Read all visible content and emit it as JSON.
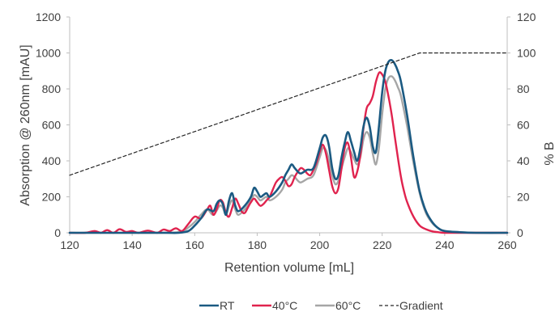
{
  "chart_data": {
    "type": "line",
    "xlabel": "Retention volume [mL]",
    "ylabel": "Absorption @ 260nm  [mAU]",
    "y2label": "% B",
    "xlim": [
      120,
      260
    ],
    "ylim": [
      0,
      1200
    ],
    "y2lim": [
      0,
      120
    ],
    "x_ticks": [
      "120",
      "140",
      "160",
      "180",
      "200",
      "220",
      "240",
      "260"
    ],
    "y_ticks": [
      "0",
      "200",
      "400",
      "600",
      "800",
      "1000",
      "1200"
    ],
    "y2_ticks": [
      "0",
      "20",
      "40",
      "60",
      "80",
      "100",
      "120"
    ],
    "grid": false,
    "legend_position": "bottom",
    "colors": {
      "RT": "#1b5a82",
      "40°C": "#e0234e",
      "60°C": "#a6a6a6",
      "Gradient": "#262626",
      "axis": "#bfbfbf",
      "text": "#404040"
    },
    "series": [
      {
        "name": "RT",
        "axis": "left",
        "x": [
          120,
          140,
          150,
          155,
          158,
          160,
          162,
          164,
          166,
          167,
          168,
          169,
          170,
          171,
          172,
          173,
          174,
          176,
          178,
          179,
          180,
          181,
          182,
          183,
          184,
          186,
          188,
          189,
          190,
          191,
          192,
          193,
          194,
          196,
          198,
          200,
          201,
          202,
          203,
          204,
          205,
          206,
          207,
          208,
          209,
          210,
          211,
          212,
          213,
          214,
          215,
          216,
          217,
          218,
          219,
          220,
          221,
          222,
          223,
          224,
          225,
          226,
          228,
          230,
          232,
          234,
          236,
          238,
          240,
          245,
          250,
          260
        ],
        "values": [
          0,
          0,
          0,
          0,
          10,
          40,
          80,
          130,
          120,
          160,
          180,
          160,
          100,
          180,
          220,
          150,
          120,
          150,
          200,
          250,
          230,
          200,
          210,
          220,
          200,
          230,
          280,
          320,
          350,
          380,
          360,
          340,
          330,
          350,
          360,
          470,
          530,
          540,
          480,
          360,
          300,
          320,
          420,
          500,
          560,
          510,
          450,
          400,
          470,
          590,
          640,
          590,
          480,
          450,
          600,
          780,
          900,
          950,
          960,
          940,
          900,
          840,
          650,
          420,
          230,
          120,
          60,
          25,
          10,
          3,
          0,
          0
        ]
      },
      {
        "name": "40°C",
        "axis": "left",
        "x": [
          120,
          125,
          128,
          130,
          132,
          134,
          136,
          138,
          140,
          142,
          145,
          148,
          150,
          152,
          154,
          156,
          158,
          160,
          162,
          164,
          165,
          166,
          167,
          168,
          169,
          170,
          171,
          172,
          173,
          174,
          175,
          176,
          177,
          178,
          179,
          180,
          181,
          182,
          183,
          184,
          185,
          186,
          187,
          188,
          189,
          190,
          191,
          192,
          193,
          194,
          195,
          196,
          197,
          198,
          199,
          200,
          201,
          202,
          203,
          204,
          205,
          206,
          207,
          208,
          209,
          210,
          211,
          212,
          213,
          214,
          215,
          216,
          217,
          218,
          219,
          220,
          221,
          222,
          223,
          224,
          225,
          226,
          227,
          228,
          230,
          232,
          234,
          236,
          238,
          240,
          245,
          260
        ],
        "values": [
          0,
          0,
          10,
          0,
          15,
          0,
          20,
          5,
          10,
          0,
          12,
          0,
          18,
          10,
          25,
          10,
          50,
          90,
          80,
          130,
          150,
          100,
          130,
          180,
          170,
          110,
          90,
          140,
          190,
          160,
          120,
          110,
          140,
          170,
          190,
          170,
          150,
          160,
          180,
          200,
          240,
          280,
          300,
          310,
          290,
          260,
          270,
          310,
          340,
          360,
          350,
          330,
          320,
          350,
          390,
          450,
          490,
          440,
          350,
          260,
          220,
          250,
          360,
          470,
          500,
          420,
          310,
          340,
          430,
          580,
          690,
          720,
          760,
          840,
          890,
          880,
          840,
          760,
          660,
          540,
          420,
          310,
          230,
          170,
          90,
          40,
          20,
          8,
          3,
          0,
          0,
          0
        ]
      },
      {
        "name": "60°C",
        "axis": "left",
        "x": [
          120,
          150,
          156,
          158,
          160,
          162,
          164,
          166,
          168,
          169,
          170,
          171,
          172,
          173,
          174,
          176,
          178,
          179,
          180,
          181,
          182,
          183,
          184,
          186,
          188,
          189,
          190,
          191,
          192,
          193,
          194,
          196,
          198,
          200,
          201,
          202,
          203,
          204,
          205,
          206,
          207,
          208,
          209,
          210,
          211,
          212,
          213,
          214,
          215,
          216,
          217,
          218,
          219,
          220,
          221,
          222,
          223,
          224,
          225,
          226,
          228,
          230,
          232,
          234,
          236,
          238,
          240,
          245,
          250,
          260
        ],
        "values": [
          0,
          0,
          10,
          30,
          60,
          100,
          130,
          100,
          150,
          140,
          100,
          150,
          180,
          130,
          100,
          130,
          180,
          210,
          200,
          180,
          190,
          200,
          180,
          200,
          240,
          280,
          300,
          320,
          310,
          290,
          280,
          300,
          320,
          420,
          470,
          460,
          400,
          320,
          270,
          290,
          360,
          420,
          470,
          450,
          410,
          380,
          420,
          520,
          560,
          530,
          440,
          380,
          480,
          660,
          800,
          860,
          870,
          850,
          810,
          760,
          590,
          390,
          220,
          110,
          55,
          25,
          10,
          3,
          0,
          0
        ]
      },
      {
        "name": "Gradient",
        "axis": "right",
        "x": [
          120,
          232,
          260
        ],
        "values": [
          32,
          100,
          100
        ]
      }
    ]
  }
}
